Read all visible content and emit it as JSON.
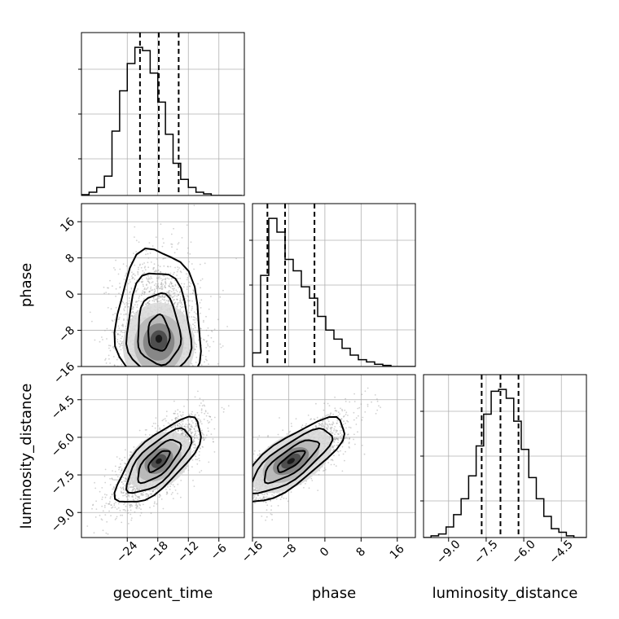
{
  "chart_data": {
    "type": "corner",
    "grid": true,
    "parameters": [
      {
        "key": "geocent_time",
        "label": "geocent_time",
        "range": [
          -33,
          -1
        ],
        "ticks": [
          -24,
          -18,
          -12,
          -6
        ]
      },
      {
        "key": "phase",
        "label": "phase",
        "range": [
          -16,
          20
        ],
        "ticks": [
          -16,
          -8,
          0,
          8,
          16
        ]
      },
      {
        "key": "luminosity_distance",
        "label": "luminosity_distance",
        "range": [
          -10,
          -3.5
        ],
        "ticks": [
          -9.0,
          -7.5,
          -6.0,
          -4.5
        ]
      }
    ],
    "marginals": [
      {
        "parameter": "geocent_time",
        "bin_edges": [
          -33,
          -31.5,
          -30,
          -28.5,
          -27,
          -25.5,
          -24,
          -22.5,
          -21,
          -19.5,
          -18,
          -16.5,
          -15,
          -13.5,
          -12,
          -10.5,
          -9,
          -7.5,
          -6,
          -4.5,
          -3,
          -1.5
        ],
        "counts": [
          0.5,
          2,
          5,
          12,
          40,
          65,
          82,
          92,
          90,
          76,
          58,
          38,
          20,
          10,
          5,
          2,
          1,
          0,
          0,
          0,
          0
        ],
        "quantiles": [
          -21.5,
          -17.8,
          -13.9
        ]
      },
      {
        "parameter": "phase",
        "bin_edges": [
          -16,
          -14.2,
          -12.4,
          -10.6,
          -8.8,
          -7,
          -5.2,
          -3.4,
          -1.6,
          0.2,
          2,
          3.8,
          5.6,
          7.4,
          9.2,
          11,
          12.8,
          14.6,
          16.4,
          18.2,
          20
        ],
        "counts": [
          6,
          40,
          65,
          59,
          47,
          42,
          35,
          30,
          22,
          16,
          12,
          8,
          5,
          3,
          2,
          1,
          0.5,
          0,
          0,
          0
        ],
        "quantiles": [
          -12.7,
          -8.8,
          -2.3
        ]
      },
      {
        "parameter": "luminosity_distance",
        "bin_edges": [
          -10,
          -9.7,
          -9.4,
          -9.1,
          -8.8,
          -8.5,
          -8.2,
          -7.9,
          -7.6,
          -7.3,
          -7.0,
          -6.7,
          -6.4,
          -6.1,
          -5.8,
          -5.5,
          -5.2,
          -4.9,
          -4.6,
          -4.3,
          -4.0,
          -3.7,
          -3.5
        ],
        "counts": [
          0,
          1,
          2,
          6,
          13,
          22,
          35,
          52,
          70,
          83,
          84,
          79,
          66,
          50,
          34,
          22,
          12,
          5,
          3,
          1,
          0,
          0
        ],
        "quantiles": [
          -7.68,
          -6.93,
          -6.21
        ]
      }
    ],
    "joints": [
      {
        "x": "geocent_time",
        "y": "phase",
        "center": [
          -17.8,
          -9.5
        ],
        "spread": [
          4.2,
          6.0
        ],
        "correlation": -0.05,
        "skew_y": 0.45,
        "contour_levels_sigma": [
          0.5,
          1.0,
          1.5,
          2.0
        ],
        "samples": 2400
      },
      {
        "x": "geocent_time",
        "y": "luminosity_distance",
        "center": [
          -17.8,
          -6.95
        ],
        "spread": [
          4.2,
          0.85
        ],
        "correlation": 0.72,
        "skew_y": 0,
        "contour_levels_sigma": [
          0.5,
          1.0,
          1.5,
          2.0
        ],
        "samples": 2400
      },
      {
        "x": "phase",
        "y": "luminosity_distance",
        "center": [
          -7.5,
          -6.95
        ],
        "spread": [
          6.0,
          0.85
        ],
        "correlation": 0.78,
        "skew_y": 0,
        "contour_levels_sigma": [
          0.5,
          1.0,
          1.5,
          2.0
        ],
        "samples": 2400
      }
    ]
  }
}
